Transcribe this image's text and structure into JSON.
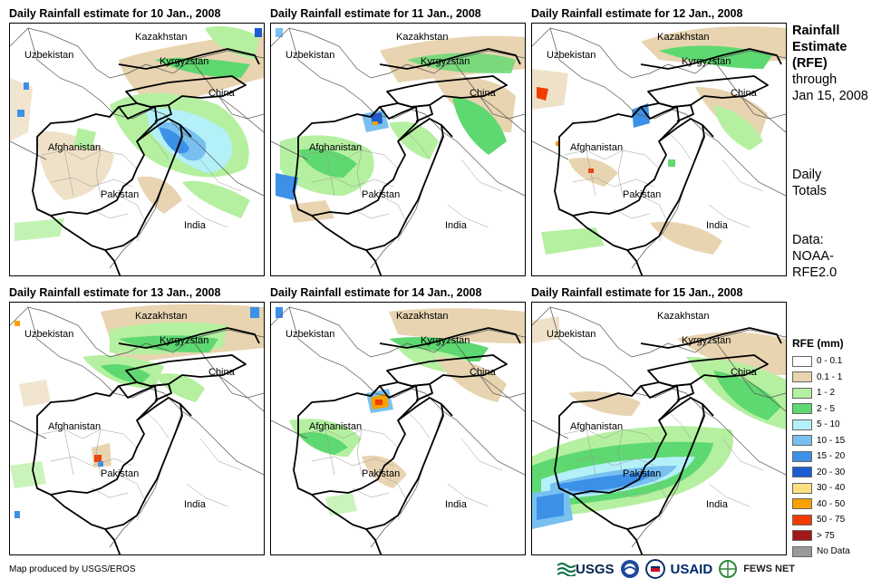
{
  "panels": [
    {
      "title": "Daily Rainfall estimate for 10 Jan., 2008"
    },
    {
      "title": "Daily Rainfall estimate for 11 Jan., 2008"
    },
    {
      "title": "Daily Rainfall estimate for 12 Jan., 2008"
    },
    {
      "title": "Daily Rainfall estimate for 13 Jan., 2008"
    },
    {
      "title": "Daily Rainfall estimate for 14 Jan., 2008"
    },
    {
      "title": "Daily Rainfall estimate for 15 Jan., 2008"
    }
  ],
  "map_labels": {
    "kazakhstan": "Kazakhstan",
    "uzbekistan": "Uzbekistan",
    "kyrgyzstan": "Kyrgyzstan",
    "china": "China",
    "afghanistan": "Afghanistan",
    "pakistan": "Pakistan",
    "india": "India"
  },
  "side": {
    "title_line1": "Rainfall",
    "title_line2": "Estimate",
    "title_line3": "(RFE)",
    "through": "through",
    "date": "Jan 15, 2008",
    "daily": "Daily",
    "totals": "Totals",
    "data_label": "Data:",
    "data_source1": "NOAA-",
    "data_source2": "RFE2.0"
  },
  "legend": {
    "title": "RFE (mm)",
    "items": [
      {
        "label": "0 - 0.1",
        "color": "#ffffff"
      },
      {
        "label": "0.1 - 1",
        "color": "#e8d4b0"
      },
      {
        "label": "1 - 2",
        "color": "#b4f0a0"
      },
      {
        "label": "2 - 5",
        "color": "#5ed870"
      },
      {
        "label": "5 - 10",
        "color": "#b4f0f8"
      },
      {
        "label": "10 - 15",
        "color": "#78c0f0"
      },
      {
        "label": "15 - 20",
        "color": "#3c90e8"
      },
      {
        "label": "20 - 30",
        "color": "#1c5cd0"
      },
      {
        "label": "30 - 40",
        "color": "#fce080"
      },
      {
        "label": "40 - 50",
        "color": "#f8a000"
      },
      {
        "label": "50 - 75",
        "color": "#f03c00"
      },
      {
        "label": "> 75",
        "color": "#a01818"
      },
      {
        "label": "No Data",
        "color": "#9a9a9a"
      }
    ]
  },
  "credit": "Map produced by USGS/EROS",
  "logos": {
    "usgs": "USGS",
    "usaid": "USAID",
    "fews": "FEWS NET"
  }
}
